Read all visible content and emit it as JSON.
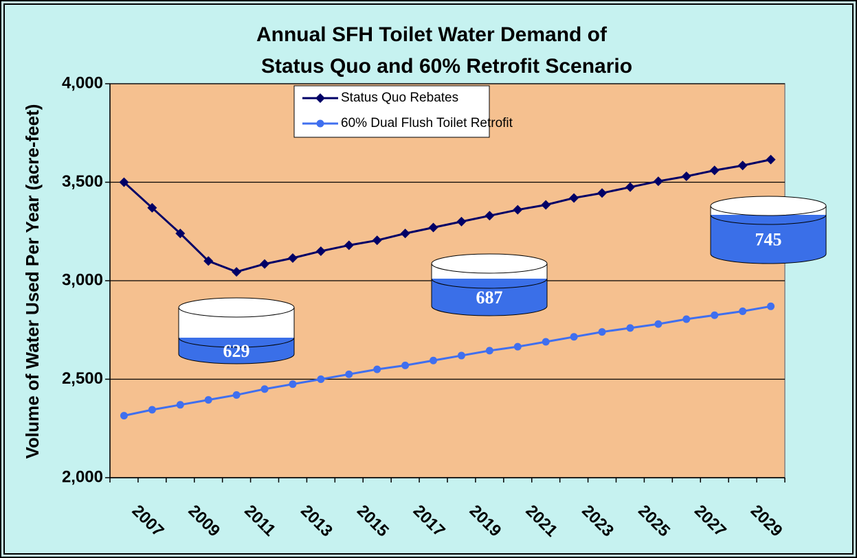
{
  "chart_data": {
    "type": "line",
    "title_lines": [
      "Annual SFH Toilet Water Demand of",
      "Status Quo and 60% Retrofit Scenario"
    ],
    "y_label": "Volume of Water Used Per Year (acre-feet)",
    "categories": [
      null,
      "2007",
      null,
      "2009",
      null,
      "2011",
      null,
      "2013",
      null,
      "2015",
      null,
      "2017",
      null,
      "2019",
      null,
      "2021",
      null,
      "2023",
      null,
      "2025",
      null,
      "2027",
      null,
      "2029"
    ],
    "series": [
      {
        "name": "Status Quo Rebates",
        "color": "#000066",
        "marker": "diamond",
        "values": [
          3500,
          3370,
          3240,
          3100,
          3045,
          3085,
          3115,
          3150,
          3180,
          3205,
          3240,
          3270,
          3300,
          3330,
          3360,
          3385,
          3420,
          3445,
          3475,
          3505,
          3530,
          3560,
          3585,
          3615
        ]
      },
      {
        "name": "60% Dual Flush Toilet Retrofit",
        "color": "#3f6fef",
        "marker": "circle",
        "values": [
          2315,
          2345,
          2370,
          2395,
          2420,
          2450,
          2475,
          2500,
          2525,
          2550,
          2570,
          2595,
          2620,
          2645,
          2665,
          2690,
          2715,
          2740,
          2760,
          2780,
          2805,
          2825,
          2845,
          2870
        ]
      }
    ],
    "ylim": [
      2000,
      4000
    ],
    "yticks": [
      {
        "value": 2000,
        "label": "2,000"
      },
      {
        "value": 2500,
        "label": "2,500"
      },
      {
        "value": 3000,
        "label": "3,000"
      },
      {
        "value": 3500,
        "label": "3,500"
      },
      {
        "value": 4000,
        "label": "4,000"
      }
    ],
    "grid": true,
    "annotations": [
      "629",
      "687",
      "745"
    ]
  }
}
